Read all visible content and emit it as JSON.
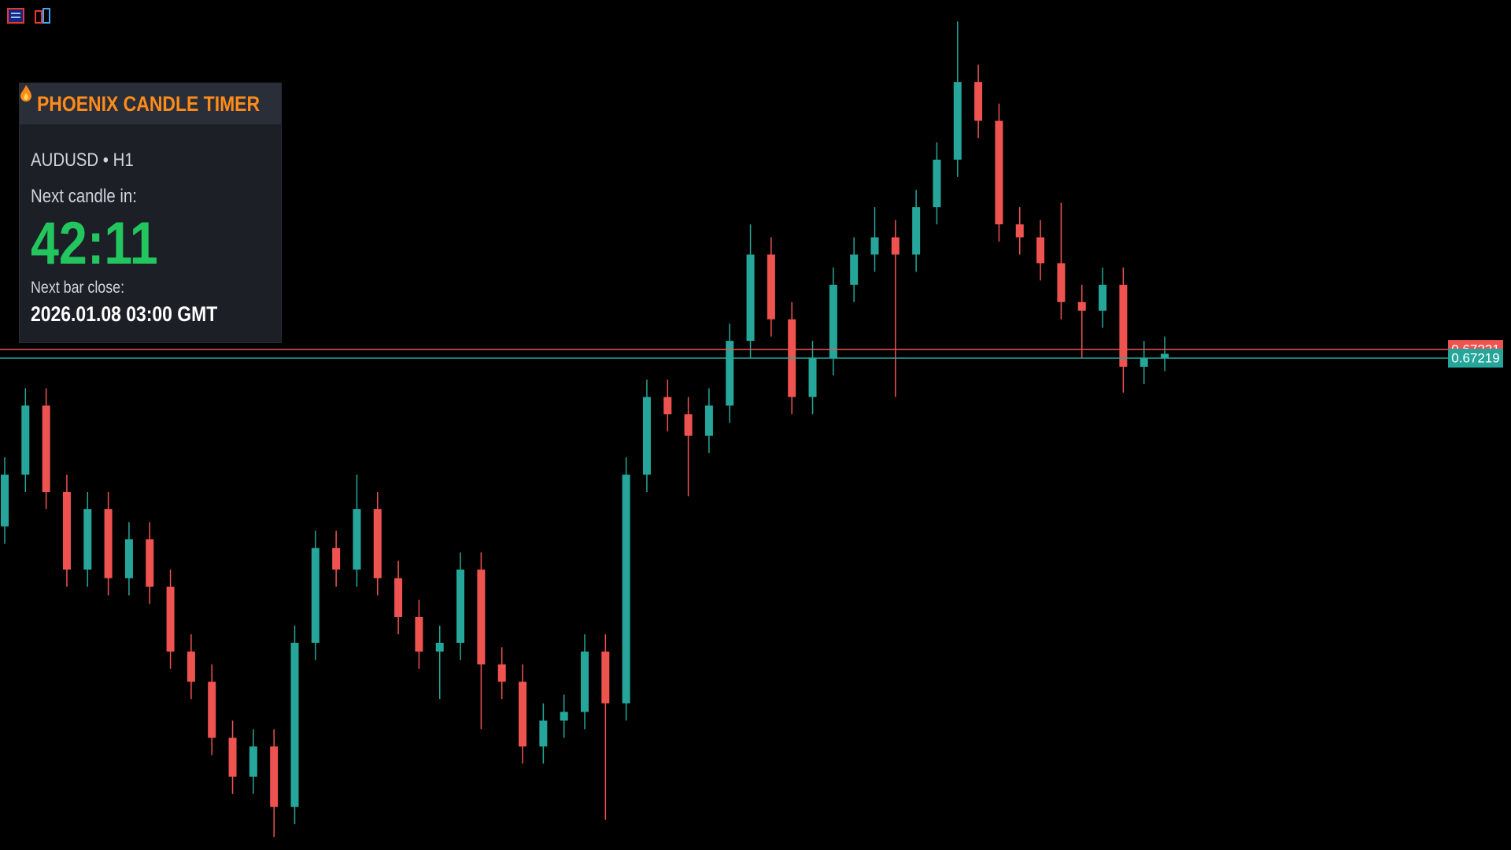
{
  "chart_data": {
    "type": "candlestick",
    "open": [
      0.6718,
      0.67192,
      0.67208,
      0.67188,
      0.6717,
      0.67184,
      0.67168,
      0.67177,
      0.67166,
      0.67151,
      0.67144,
      0.67131,
      0.67122,
      0.67129,
      0.67115,
      0.67153,
      0.67175,
      0.6717,
      0.67184,
      0.67168,
      0.67159,
      0.67151,
      0.67153,
      0.6717,
      0.67148,
      0.67144,
      0.67129,
      0.67135,
      0.67137,
      0.67151,
      0.67139,
      0.67192,
      0.6721,
      0.67206,
      0.67201,
      0.67208,
      0.67223,
      0.67243,
      0.67228,
      0.6721,
      0.67219,
      0.67236,
      0.67243,
      0.67247,
      0.67243,
      0.67254,
      0.67265,
      0.67283,
      0.67274,
      0.6725,
      0.67247,
      0.67241,
      0.67232,
      0.6723,
      0.67236,
      0.67217,
      0.67219
    ],
    "high": [
      0.67196,
      0.67212,
      0.67212,
      0.67192,
      0.67188,
      0.67188,
      0.67181,
      0.67181,
      0.6717,
      0.67155,
      0.67148,
      0.67135,
      0.67133,
      0.67133,
      0.67157,
      0.67179,
      0.67179,
      0.67192,
      0.67188,
      0.67172,
      0.67163,
      0.67157,
      0.67174,
      0.67174,
      0.67152,
      0.67148,
      0.67139,
      0.67141,
      0.67155,
      0.67155,
      0.67196,
      0.67214,
      0.67214,
      0.6721,
      0.67212,
      0.67227,
      0.6725,
      0.67247,
      0.67232,
      0.67223,
      0.6724,
      0.67247,
      0.67254,
      0.67251,
      0.67258,
      0.67269,
      0.67297,
      0.67287,
      0.67278,
      0.67254,
      0.67251,
      0.67255,
      0.67236,
      0.6724,
      0.6724,
      0.67223,
      0.67224
    ],
    "low": [
      0.67176,
      0.67188,
      0.67184,
      0.67166,
      0.67166,
      0.67164,
      0.67164,
      0.67162,
      0.67147,
      0.6714,
      0.67127,
      0.67118,
      0.67118,
      0.67108,
      0.67111,
      0.67149,
      0.67166,
      0.67166,
      0.67164,
      0.67155,
      0.67147,
      0.6714,
      0.67149,
      0.67133,
      0.6714,
      0.67125,
      0.67125,
      0.67131,
      0.67133,
      0.67112,
      0.67135,
      0.67188,
      0.67202,
      0.67187,
      0.67197,
      0.67204,
      0.67219,
      0.67224,
      0.67206,
      0.67206,
      0.67215,
      0.67232,
      0.67239,
      0.6721,
      0.67239,
      0.6725,
      0.67261,
      0.6727,
      0.67246,
      0.67243,
      0.67237,
      0.67228,
      0.67219,
      0.67226,
      0.67211,
      0.67213,
      0.67216
    ],
    "close": [
      0.67192,
      0.67208,
      0.67188,
      0.6717,
      0.67184,
      0.67168,
      0.67177,
      0.67166,
      0.67151,
      0.67144,
      0.67131,
      0.67122,
      0.67129,
      0.67115,
      0.67153,
      0.67175,
      0.6717,
      0.67184,
      0.67168,
      0.67159,
      0.67151,
      0.67153,
      0.6717,
      0.67148,
      0.67144,
      0.67129,
      0.67135,
      0.67137,
      0.67151,
      0.67139,
      0.67192,
      0.6721,
      0.67206,
      0.67201,
      0.67208,
      0.67223,
      0.67243,
      0.67228,
      0.6721,
      0.67219,
      0.67236,
      0.67243,
      0.67247,
      0.67243,
      0.67254,
      0.67265,
      0.67283,
      0.67274,
      0.6725,
      0.67247,
      0.67241,
      0.67232,
      0.6723,
      0.67236,
      0.67217,
      0.67219,
      0.6722
    ],
    "up_color": "#26a69a",
    "down_color": "#ef5350",
    "ylim": [
      0.67105,
      0.67302
    ],
    "price_lines": [
      {
        "value": 0.67221,
        "color": "#ef5350"
      },
      {
        "value": 0.67219,
        "color": "#26a69a"
      }
    ]
  },
  "panel": {
    "title": "PHOENIX CANDLE TIMER",
    "symbol": "AUDUSD • H1",
    "next_label": "Next candle in:",
    "timer": "42:11",
    "close_label": "Next bar close:",
    "close_time": "2026.01.08 03:00 GMT"
  }
}
